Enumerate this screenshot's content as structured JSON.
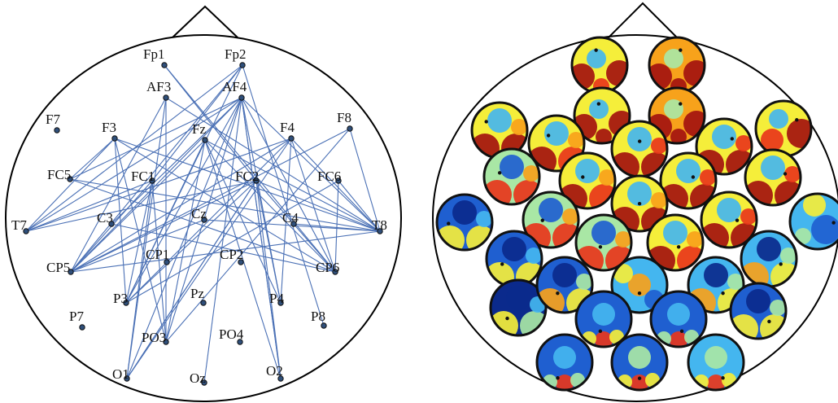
{
  "left_panel": {
    "electrodes": [
      {
        "id": "Fp1",
        "label": "Fp1"
      },
      {
        "id": "Fp2",
        "label": "Fp2"
      },
      {
        "id": "AF3",
        "label": "AF3"
      },
      {
        "id": "AF4",
        "label": "AF4"
      },
      {
        "id": "F7",
        "label": "F7"
      },
      {
        "id": "F3",
        "label": "F3"
      },
      {
        "id": "Fz",
        "label": "Fz"
      },
      {
        "id": "F4",
        "label": "F4"
      },
      {
        "id": "F8",
        "label": "F8"
      },
      {
        "id": "FC5",
        "label": "FC5"
      },
      {
        "id": "FC1",
        "label": "FC1"
      },
      {
        "id": "FC2",
        "label": "FC2"
      },
      {
        "id": "FC6",
        "label": "FC6"
      },
      {
        "id": "T7",
        "label": "T7"
      },
      {
        "id": "C3",
        "label": "C3"
      },
      {
        "id": "Cz",
        "label": "Cz"
      },
      {
        "id": "C4",
        "label": "C4"
      },
      {
        "id": "T8",
        "label": "T8"
      },
      {
        "id": "CP5",
        "label": "CP5"
      },
      {
        "id": "CP1",
        "label": "CP1"
      },
      {
        "id": "CP2",
        "label": "CP2"
      },
      {
        "id": "CP6",
        "label": "CP6"
      },
      {
        "id": "P7",
        "label": "P7"
      },
      {
        "id": "P3",
        "label": "P3"
      },
      {
        "id": "Pz",
        "label": "Pz"
      },
      {
        "id": "P4",
        "label": "P4"
      },
      {
        "id": "P8",
        "label": "P8"
      },
      {
        "id": "PO3",
        "label": "PO3"
      },
      {
        "id": "PO4",
        "label": "PO4"
      },
      {
        "id": "O1",
        "label": "O1"
      },
      {
        "id": "Oz",
        "label": "Oz"
      },
      {
        "id": "O2",
        "label": "O2"
      }
    ],
    "connections": [
      [
        "Fp1",
        "CP6"
      ],
      [
        "Fp1",
        "FC2"
      ],
      [
        "Fp2",
        "CP5"
      ],
      [
        "Fp2",
        "P3"
      ],
      [
        "Fp2",
        "T7"
      ],
      [
        "Fp2",
        "P8"
      ],
      [
        "Fp2",
        "FC1"
      ],
      [
        "AF3",
        "O1"
      ],
      [
        "AF3",
        "PO3"
      ],
      [
        "AF3",
        "T8"
      ],
      [
        "AF3",
        "CP5"
      ],
      [
        "AF4",
        "CP5"
      ],
      [
        "AF4",
        "P3"
      ],
      [
        "AF4",
        "O1"
      ],
      [
        "AF4",
        "PO3"
      ],
      [
        "AF4",
        "P4"
      ],
      [
        "AF4",
        "O2"
      ],
      [
        "AF4",
        "CP6"
      ],
      [
        "AF4",
        "T7"
      ],
      [
        "AF4",
        "Oz"
      ],
      [
        "AF4",
        "FC5"
      ],
      [
        "AF4",
        "T8"
      ],
      [
        "AF4",
        "C3"
      ],
      [
        "F3",
        "T8"
      ],
      [
        "F3",
        "CP6"
      ],
      [
        "F3",
        "P3"
      ],
      [
        "F3",
        "PO3"
      ],
      [
        "F3",
        "FC5"
      ],
      [
        "F3",
        "T7"
      ],
      [
        "Fz",
        "CP5"
      ],
      [
        "Fz",
        "P4"
      ],
      [
        "Fz",
        "O2"
      ],
      [
        "Fz",
        "T8"
      ],
      [
        "Fz",
        "P3"
      ],
      [
        "Fz",
        "CP6"
      ],
      [
        "F4",
        "CP5"
      ],
      [
        "F4",
        "O1"
      ],
      [
        "F4",
        "T7"
      ],
      [
        "F4",
        "P4"
      ],
      [
        "F4",
        "T8"
      ],
      [
        "F4",
        "CP6"
      ],
      [
        "F4",
        "P3"
      ],
      [
        "F8",
        "CP5"
      ],
      [
        "F8",
        "PO3"
      ],
      [
        "F8",
        "T8"
      ],
      [
        "FC5",
        "T8"
      ],
      [
        "FC5",
        "CP6"
      ],
      [
        "FC1",
        "O1"
      ],
      [
        "FC1",
        "PO3"
      ],
      [
        "FC1",
        "P3"
      ],
      [
        "FC1",
        "CP5"
      ],
      [
        "FC2",
        "CP5"
      ],
      [
        "FC2",
        "T7"
      ],
      [
        "FC2",
        "O2"
      ],
      [
        "FC2",
        "P4"
      ],
      [
        "FC2",
        "T8"
      ],
      [
        "FC2",
        "O1"
      ],
      [
        "FC2",
        "CP6"
      ],
      [
        "FC2",
        "P3"
      ],
      [
        "FC6",
        "T8"
      ],
      [
        "FC6",
        "CP6"
      ],
      [
        "T7",
        "FC1"
      ],
      [
        "C3",
        "CP6"
      ],
      [
        "Cz",
        "CP5"
      ],
      [
        "Cz",
        "T8"
      ],
      [
        "C4",
        "T8"
      ],
      [
        "CP5",
        "T8"
      ],
      [
        "P3",
        "FC6"
      ],
      [
        "PO3",
        "Fz"
      ],
      [
        "O1",
        "FC2"
      ],
      [
        "O2",
        "AF4"
      ]
    ],
    "colors": {
      "line": "#4a70b5",
      "node_fill": "#2f4f7a",
      "node_stroke": "#111111",
      "head": "#000000"
    }
  },
  "right_panel": {
    "colormap": [
      "#0b2a8c",
      "#1f5fd0",
      "#44b6ef",
      "#a9e7a5",
      "#f5ee3a",
      "#f7a21b",
      "#e8361b",
      "#a3120f"
    ],
    "topomaps": [
      {
        "id": "Fp1",
        "level": 0.62,
        "hot": "side"
      },
      {
        "id": "Fp2",
        "level": 0.72,
        "hot": "side"
      },
      {
        "id": "AF3",
        "level": 0.65,
        "hot": "side"
      },
      {
        "id": "AF4",
        "level": 0.68,
        "hot": "side"
      },
      {
        "id": "F7",
        "level": 0.58,
        "hot": "lower"
      },
      {
        "id": "F3",
        "level": 0.55,
        "hot": "lower"
      },
      {
        "id": "Fz",
        "level": 0.6,
        "hot": "lower"
      },
      {
        "id": "F4",
        "level": 0.62,
        "hot": "lower"
      },
      {
        "id": "F8",
        "level": 0.66,
        "hot": "right"
      },
      {
        "id": "FC5",
        "level": 0.48,
        "hot": "lower"
      },
      {
        "id": "FC1",
        "level": 0.55,
        "hot": "lower"
      },
      {
        "id": "FC2",
        "level": 0.63,
        "hot": "lower"
      },
      {
        "id": "FC6",
        "level": 0.6,
        "hot": "lower"
      },
      {
        "id": "T7",
        "level": 0.2,
        "hot": "lower"
      },
      {
        "id": "C3",
        "level": 0.5,
        "hot": "lower"
      },
      {
        "id": "Cz",
        "level": 0.58,
        "hot": "lower"
      },
      {
        "id": "C4",
        "level": 0.6,
        "hot": "lower"
      },
      {
        "id": "T8",
        "level": 0.35,
        "hot": "top"
      },
      {
        "id": "CP5",
        "level": 0.22,
        "hot": "lower"
      },
      {
        "id": "CP1",
        "level": 0.52,
        "hot": "lower"
      },
      {
        "id": "CP2",
        "level": 0.55,
        "hot": "lower"
      },
      {
        "id": "CP6",
        "level": 0.3,
        "hot": "lower"
      },
      {
        "id": "P7",
        "level": 0.15,
        "hot": "lower"
      },
      {
        "id": "P3",
        "level": 0.28,
        "hot": "lower"
      },
      {
        "id": "Pz",
        "level": 0.4,
        "hot": "center"
      },
      {
        "id": "P4",
        "level": 0.32,
        "hot": "lower"
      },
      {
        "id": "P8",
        "level": 0.25,
        "hot": "lower"
      },
      {
        "id": "PO3",
        "level": 0.25,
        "hot": "bottom"
      },
      {
        "id": "PO4",
        "level": 0.22,
        "hot": "bottom"
      },
      {
        "id": "O1",
        "level": 0.22,
        "hot": "bottom"
      },
      {
        "id": "Oz",
        "level": 0.28,
        "hot": "bottom"
      },
      {
        "id": "O2",
        "level": 0.3,
        "hot": "bottom"
      }
    ],
    "colors": {
      "rim": "#111111",
      "head": "#000000",
      "marker": "#111111"
    }
  }
}
